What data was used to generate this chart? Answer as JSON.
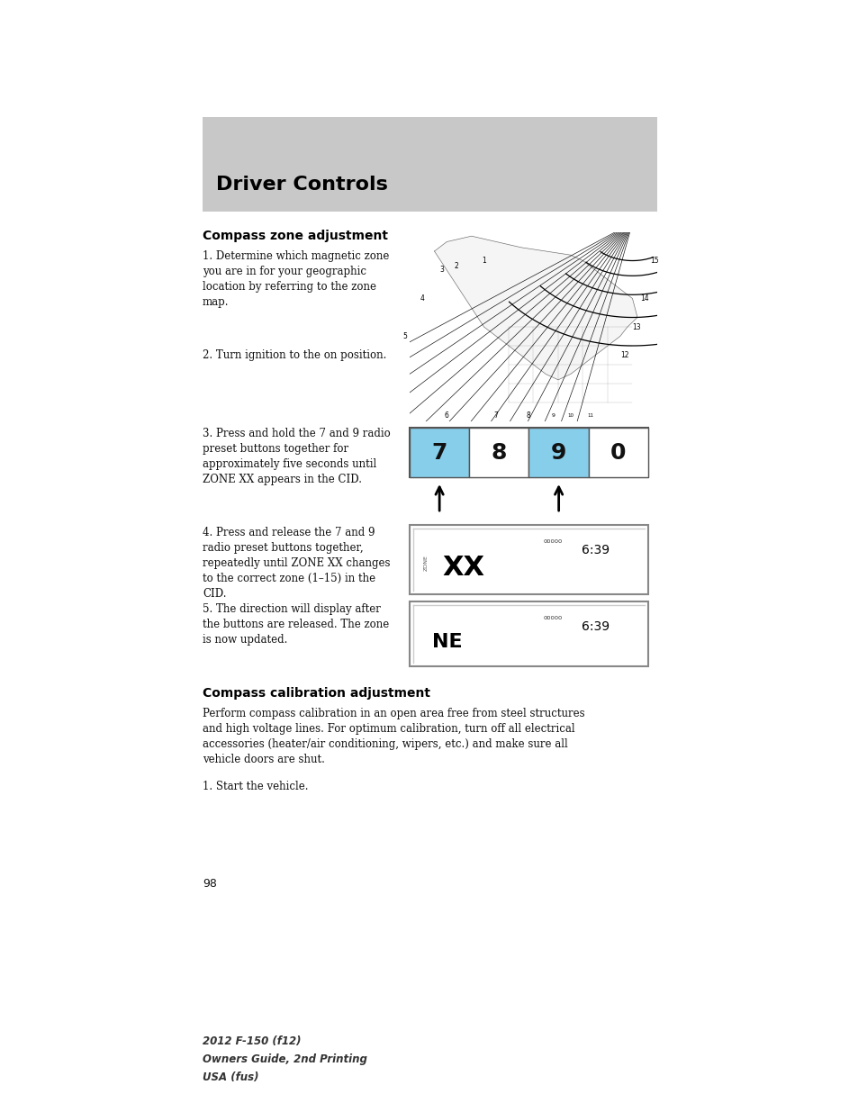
{
  "page_bg": "#ffffff",
  "header_bg": "#c8c8c8",
  "header_text": "Driver Controls",
  "section1_title": "Compass zone adjustment",
  "step1": "1. Determine which magnetic zone\nyou are in for your geographic\nlocation by referring to the zone\nmap.",
  "step2": "2. Turn ignition to the on position.",
  "step3": "3. Press and hold the 7 and 9 radio\npreset buttons together for\napproximately five seconds until\nZONE XX appears in the CID.",
  "step4": "4. Press and release the 7 and 9\nradio preset buttons together,\nrepeatedly until ZONE XX changes\nto the correct zone (1–15) in the\nCID.",
  "step5": "5. The direction will display after\nthe buttons are released. The zone\nis now updated.",
  "section2_title": "Compass calibration adjustment",
  "section2_body": "Perform compass calibration in an open area free from steel structures\nand high voltage lines. For optimum calibration, turn off all electrical\naccessories (heater/air conditioning, wipers, etc.) and make sure all\nvehicle doors are shut.",
  "section2_step1": "1. Start the vehicle.",
  "page_number": "98",
  "footer_line1": "2012 F-150 (f12)",
  "footer_line2": "Owners Guide, 2nd Printing",
  "footer_line3": "USA (fus)",
  "button_labels": [
    "7",
    "8",
    "9",
    "0"
  ],
  "button_highlight": [
    true,
    false,
    true,
    false
  ],
  "button_highlight_color": "#87CEEB",
  "text_font": "DejaVu Serif",
  "bold_font": "DejaVu Sans"
}
